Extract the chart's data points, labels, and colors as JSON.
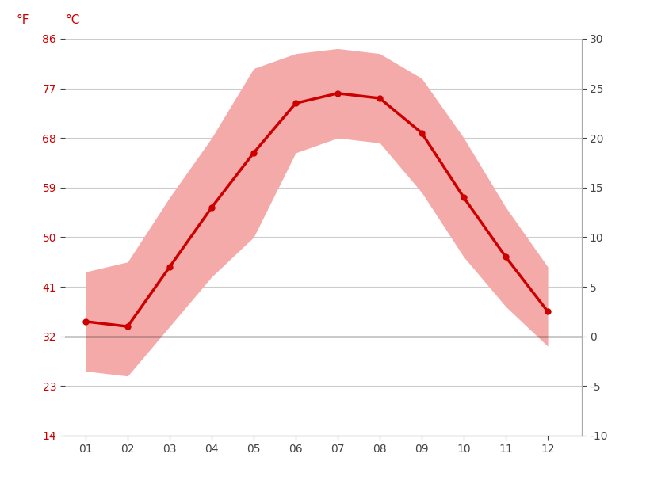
{
  "months": [
    1,
    2,
    3,
    4,
    5,
    6,
    7,
    8,
    9,
    10,
    11,
    12
  ],
  "month_labels": [
    "01",
    "02",
    "03",
    "04",
    "05",
    "06",
    "07",
    "08",
    "09",
    "10",
    "11",
    "12"
  ],
  "avg_temp": [
    1.5,
    1.0,
    7.0,
    13.0,
    18.5,
    23.5,
    24.5,
    24.0,
    20.5,
    14.0,
    8.0,
    2.5
  ],
  "max_temp": [
    6.5,
    7.5,
    14.0,
    20.0,
    27.0,
    28.5,
    29.0,
    28.5,
    26.0,
    20.0,
    13.0,
    7.0
  ],
  "min_temp": [
    -3.5,
    -4.0,
    1.0,
    6.0,
    10.0,
    18.5,
    20.0,
    19.5,
    14.5,
    8.0,
    3.0,
    -1.0
  ],
  "ylim": [
    -10,
    30
  ],
  "yticks_c": [
    -10,
    -5,
    0,
    5,
    10,
    15,
    20,
    25,
    30
  ],
  "yticks_f": [
    14,
    23,
    32,
    41,
    50,
    59,
    68,
    77,
    86
  ],
  "line_color": "#cc0000",
  "fill_color": "#f5aaaa",
  "zero_line_color": "#000000",
  "grid_color": "#cccccc",
  "axis_label_color": "#cc0000",
  "tick_color": "#444444",
  "background_color": "#ffffff",
  "fig_width": 8.15,
  "fig_height": 6.11,
  "label_f": "°F",
  "label_c": "°C"
}
